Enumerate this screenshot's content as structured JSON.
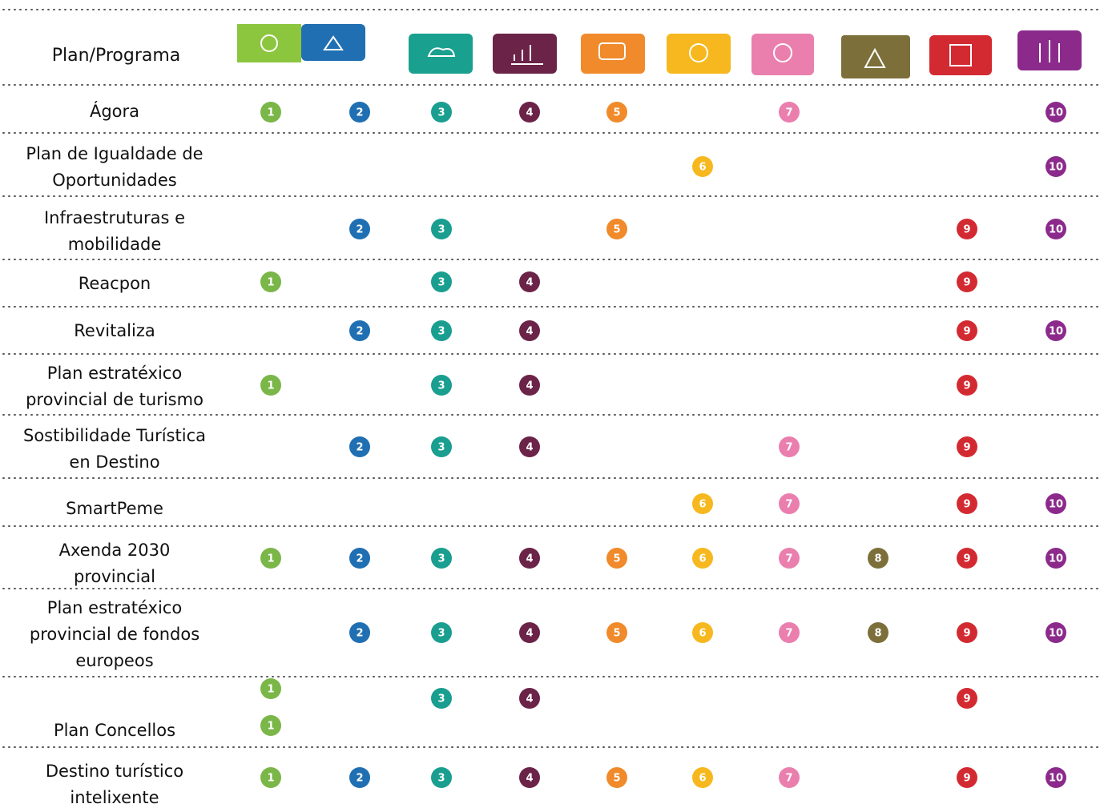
{
  "table": {
    "header": "Plan/Programa",
    "rows": [
      {
        "name_lines": [
          "Ágora"
        ],
        "badges": [
          1,
          2,
          3,
          4,
          5,
          7,
          10
        ]
      },
      {
        "name_lines": [
          "Plan de Igualdade de",
          "Oportunidades"
        ],
        "badges": [
          6,
          10
        ]
      },
      {
        "name_lines": [
          "Infraestruturas e",
          "mobilidade"
        ],
        "badges": [
          2,
          3,
          5,
          9,
          10
        ]
      },
      {
        "name_lines": [
          "Reacpon"
        ],
        "badges": [
          1,
          3,
          4,
          9
        ]
      },
      {
        "name_lines": [
          "Revitaliza"
        ],
        "badges": [
          2,
          3,
          4,
          9,
          10
        ]
      },
      {
        "name_lines": [
          "Plan estratéxico",
          "provincial de turismo"
        ],
        "badges": [
          1,
          3,
          4,
          9
        ]
      },
      {
        "name_lines": [
          "Sostibilidade Turística",
          "en Destino"
        ],
        "badges": [
          2,
          3,
          4,
          7,
          9
        ]
      },
      {
        "name_lines": [
          "SmartPeme"
        ],
        "badges": [
          6,
          7,
          9,
          10
        ]
      },
      {
        "name_lines": [
          "Axenda 2030",
          "provincial"
        ],
        "badges": [
          1,
          2,
          3,
          4,
          5,
          6,
          7,
          8,
          9,
          10
        ]
      },
      {
        "name_lines": [
          "Plan estratéxico",
          "provincial de fondos",
          "europeos"
        ],
        "badges": [
          2,
          3,
          4,
          5,
          6,
          7,
          8,
          9,
          10
        ]
      },
      {
        "name_lines": [
          "Plan Concellos"
        ],
        "badges": [
          1,
          1,
          3,
          4,
          9
        ]
      },
      {
        "name_lines": [
          "Destino turístico",
          "intelixente"
        ],
        "badges": [
          1,
          2,
          3,
          4,
          5,
          6,
          7,
          9,
          10
        ]
      }
    ]
  }
}
